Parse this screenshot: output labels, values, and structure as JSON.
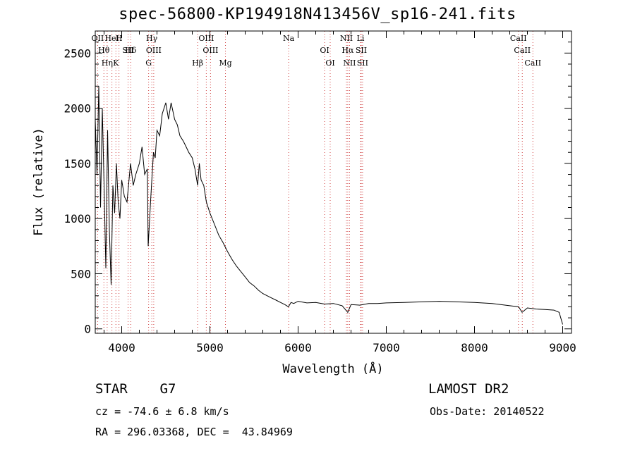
{
  "header": {
    "title": "spec-56800-KP194918N413456V_sp16-241.fits"
  },
  "info": {
    "object_class": "STAR    G7",
    "survey": "LAMOST DR2",
    "cz": "cz = -74.6 ± 6.8 km/s",
    "obs_date": "Obs-Date: 20140522",
    "radec": "RA = 296.03368, DEC =  43.84969"
  },
  "chart_data": {
    "type": "line",
    "title": "spec-56800-KP194918N413456V_sp16-241.fits",
    "xlabel": "Wavelength (Å)",
    "ylabel": "Flux (relative)",
    "xlim": [
      3700,
      9100
    ],
    "ylim": [
      -40,
      2700
    ],
    "xticks": [
      4000,
      5000,
      6000,
      7000,
      8000,
      9000
    ],
    "yticks": [
      0,
      500,
      1000,
      1500,
      2000,
      2500
    ],
    "grid": false,
    "series": [
      {
        "color": "#000000",
        "x": [
          3700,
          3720,
          3740,
          3760,
          3780,
          3800,
          3820,
          3840,
          3860,
          3880,
          3900,
          3920,
          3940,
          3960,
          3980,
          4000,
          4030,
          4060,
          4100,
          4130,
          4160,
          4200,
          4230,
          4260,
          4290,
          4300,
          4330,
          4360,
          4380,
          4400,
          4430,
          4460,
          4500,
          4530,
          4560,
          4600,
          4630,
          4660,
          4700,
          4730,
          4760,
          4800,
          4830,
          4861,
          4880,
          4900,
          4930,
          4960,
          5000,
          5050,
          5100,
          5150,
          5200,
          5250,
          5300,
          5350,
          5400,
          5450,
          5500,
          5550,
          5600,
          5650,
          5700,
          5750,
          5800,
          5850,
          5890,
          5920,
          5950,
          6000,
          6100,
          6200,
          6300,
          6400,
          6500,
          6563,
          6600,
          6700,
          6800,
          6900,
          7000,
          7200,
          7400,
          7600,
          7800,
          8000,
          8200,
          8400,
          8500,
          8540,
          8600,
          8700,
          8800,
          8900,
          8960,
          9000
        ],
        "y": [
          1900,
          1400,
          2200,
          1100,
          2000,
          1300,
          550,
          1800,
          900,
          400,
          1300,
          1050,
          1500,
          1150,
          1000,
          1350,
          1200,
          1150,
          1500,
          1300,
          1400,
          1500,
          1650,
          1400,
          1450,
          750,
          1200,
          1600,
          1550,
          1800,
          1750,
          1950,
          2050,
          1900,
          2050,
          1900,
          1850,
          1750,
          1700,
          1650,
          1600,
          1550,
          1450,
          1300,
          1500,
          1350,
          1300,
          1150,
          1050,
          950,
          850,
          780,
          700,
          630,
          570,
          520,
          470,
          420,
          390,
          350,
          320,
          300,
          280,
          260,
          240,
          220,
          200,
          240,
          230,
          250,
          235,
          240,
          225,
          230,
          210,
          150,
          220,
          215,
          230,
          230,
          235,
          240,
          245,
          250,
          245,
          240,
          230,
          210,
          200,
          150,
          190,
          180,
          175,
          170,
          150,
          40
        ]
      }
    ],
    "spectral_lines": [
      {
        "name": "OII",
        "wavelength": 3727
      },
      {
        "name": "Hθ",
        "wavelength": 3798
      },
      {
        "name": "Hη",
        "wavelength": 3835
      },
      {
        "name": "HeI",
        "wavelength": 3889
      },
      {
        "name": "SII",
        "wavelength": 4072
      },
      {
        "name": "K",
        "wavelength": 3934
      },
      {
        "name": "H",
        "wavelength": 3969
      },
      {
        "name": "Hδ",
        "wavelength": 4102
      },
      {
        "name": "G",
        "wavelength": 4305
      },
      {
        "name": "Hγ",
        "wavelength": 4341
      },
      {
        "name": "OIII",
        "wavelength": 4363
      },
      {
        "name": "Hβ",
        "wavelength": 4861
      },
      {
        "name": "OIII",
        "wavelength": 4959
      },
      {
        "name": "OIII",
        "wavelength": 5007
      },
      {
        "name": "Mg",
        "wavelength": 5176
      },
      {
        "name": "Na",
        "wavelength": 5893
      },
      {
        "name": "OI",
        "wavelength": 6300
      },
      {
        "name": "OI",
        "wavelength": 6364
      },
      {
        "name": "NII",
        "wavelength": 6548
      },
      {
        "name": "Hα",
        "wavelength": 6563
      },
      {
        "name": "NII",
        "wavelength": 6583
      },
      {
        "name": "Li",
        "wavelength": 6708
      },
      {
        "name": "SII",
        "wavelength": 6716
      },
      {
        "name": "SII",
        "wavelength": 6731
      },
      {
        "name": "CaII",
        "wavelength": 8498
      },
      {
        "name": "CaII",
        "wavelength": 8542
      },
      {
        "name": "CaII",
        "wavelength": 8662
      }
    ]
  }
}
